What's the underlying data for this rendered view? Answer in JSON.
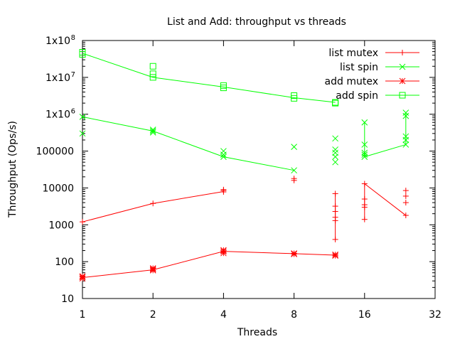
{
  "chart_data": {
    "type": "line",
    "title": "List and Add: throughput vs threads",
    "xlabel": "Threads",
    "ylabel": "Throughput (Ops/s)",
    "x_scale": "log2",
    "y_scale": "log10",
    "xlim": [
      1,
      32
    ],
    "ylim": [
      10,
      100000000
    ],
    "x_ticks": [
      {
        "value": 1,
        "label": "1"
      },
      {
        "value": 2,
        "label": "2"
      },
      {
        "value": 4,
        "label": "4"
      },
      {
        "value": 8,
        "label": "8"
      },
      {
        "value": 16,
        "label": "16"
      },
      {
        "value": 32,
        "label": "32"
      }
    ],
    "y_ticks": [
      {
        "value": 10,
        "label": "10",
        "sup": ""
      },
      {
        "value": 100,
        "label": "100",
        "sup": ""
      },
      {
        "value": 1000,
        "label": "1000",
        "sup": ""
      },
      {
        "value": 10000,
        "label": "10000",
        "sup": ""
      },
      {
        "value": 100000,
        "label": "100000",
        "sup": ""
      },
      {
        "value": 1000000,
        "label": "1x10",
        "sup": "6"
      },
      {
        "value": 10000000,
        "label": "1x10",
        "sup": "7"
      },
      {
        "value": 100000000,
        "label": "1x10",
        "sup": "8"
      }
    ],
    "grid": false,
    "legend_position": "top-right",
    "series": [
      {
        "name": "list mutex",
        "color": "#ff0000",
        "marker": "plus",
        "line": [
          [
            1,
            1200
          ],
          [
            2,
            3800
          ],
          [
            4,
            8000
          ]
        ],
        "segments": [
          [
            [
              16,
              13000
            ],
            [
              24,
              1800
            ]
          ]
        ],
        "verticals": [
          [
            12,
            400,
            7000
          ],
          [
            16,
            1400,
            13000
          ]
        ],
        "points": [
          [
            1,
            1200
          ],
          [
            2,
            3800
          ],
          [
            4,
            7800
          ],
          [
            4,
            8500
          ],
          [
            4,
            9000
          ],
          [
            8,
            16000
          ],
          [
            8,
            18000
          ],
          [
            12,
            7000
          ],
          [
            12,
            3200
          ],
          [
            12,
            2300
          ],
          [
            12,
            1600
          ],
          [
            12,
            1300
          ],
          [
            12,
            400
          ],
          [
            16,
            13000
          ],
          [
            16,
            5000
          ],
          [
            16,
            3500
          ],
          [
            16,
            3000
          ],
          [
            16,
            1400
          ],
          [
            24,
            8500
          ],
          [
            24,
            6000
          ],
          [
            24,
            4000
          ],
          [
            24,
            1800
          ]
        ]
      },
      {
        "name": "list spin",
        "color": "#00ff00",
        "marker": "x",
        "line": [
          [
            1,
            850000
          ],
          [
            2,
            350000
          ],
          [
            4,
            70000
          ],
          [
            8,
            30000
          ]
        ],
        "segments": [
          [
            [
              16,
              70000
            ],
            [
              24,
              150000
            ]
          ]
        ],
        "verticals": [
          [
            16,
            70000,
            600000
          ],
          [
            24,
            150000,
            1100000
          ]
        ],
        "points": [
          [
            1,
            850000
          ],
          [
            1,
            300000
          ],
          [
            2,
            350000
          ],
          [
            2,
            380000
          ],
          [
            2,
            320000
          ],
          [
            4,
            100000
          ],
          [
            4,
            80000
          ],
          [
            4,
            70000
          ],
          [
            8,
            130000
          ],
          [
            8,
            30000
          ],
          [
            12,
            220000
          ],
          [
            12,
            110000
          ],
          [
            12,
            90000
          ],
          [
            12,
            70000
          ],
          [
            12,
            50000
          ],
          [
            16,
            600000
          ],
          [
            16,
            150000
          ],
          [
            16,
            90000
          ],
          [
            16,
            80000
          ],
          [
            16,
            70000
          ],
          [
            24,
            1100000
          ],
          [
            24,
            900000
          ],
          [
            24,
            250000
          ],
          [
            24,
            200000
          ],
          [
            24,
            150000
          ]
        ]
      },
      {
        "name": "add mutex",
        "color": "#ff0000",
        "marker": "star",
        "line": [
          [
            1,
            37
          ],
          [
            2,
            60
          ],
          [
            4,
            190
          ],
          [
            8,
            165
          ],
          [
            12,
            150
          ]
        ],
        "segments": [],
        "verticals": [],
        "points": [
          [
            1,
            35
          ],
          [
            1,
            38
          ],
          [
            1,
            40
          ],
          [
            2,
            58
          ],
          [
            2,
            62
          ],
          [
            2,
            66
          ],
          [
            4,
            170
          ],
          [
            4,
            190
          ],
          [
            4,
            205
          ],
          [
            8,
            160
          ],
          [
            8,
            168
          ],
          [
            12,
            145
          ],
          [
            12,
            155
          ]
        ]
      },
      {
        "name": "add spin",
        "color": "#00ff00",
        "marker": "square",
        "line": [
          [
            1,
            45000000
          ],
          [
            2,
            10000000
          ],
          [
            4,
            5500000
          ],
          [
            8,
            2800000
          ],
          [
            12,
            2100000
          ]
        ],
        "segments": [],
        "verticals": [],
        "points": [
          [
            1,
            42000000
          ],
          [
            1,
            48000000
          ],
          [
            2,
            20000000
          ],
          [
            2,
            12500000
          ],
          [
            2,
            10000000
          ],
          [
            4,
            6000000
          ],
          [
            4,
            5200000
          ],
          [
            8,
            3200000
          ],
          [
            8,
            2700000
          ],
          [
            12,
            2100000
          ],
          [
            12,
            2000000
          ]
        ]
      }
    ]
  }
}
